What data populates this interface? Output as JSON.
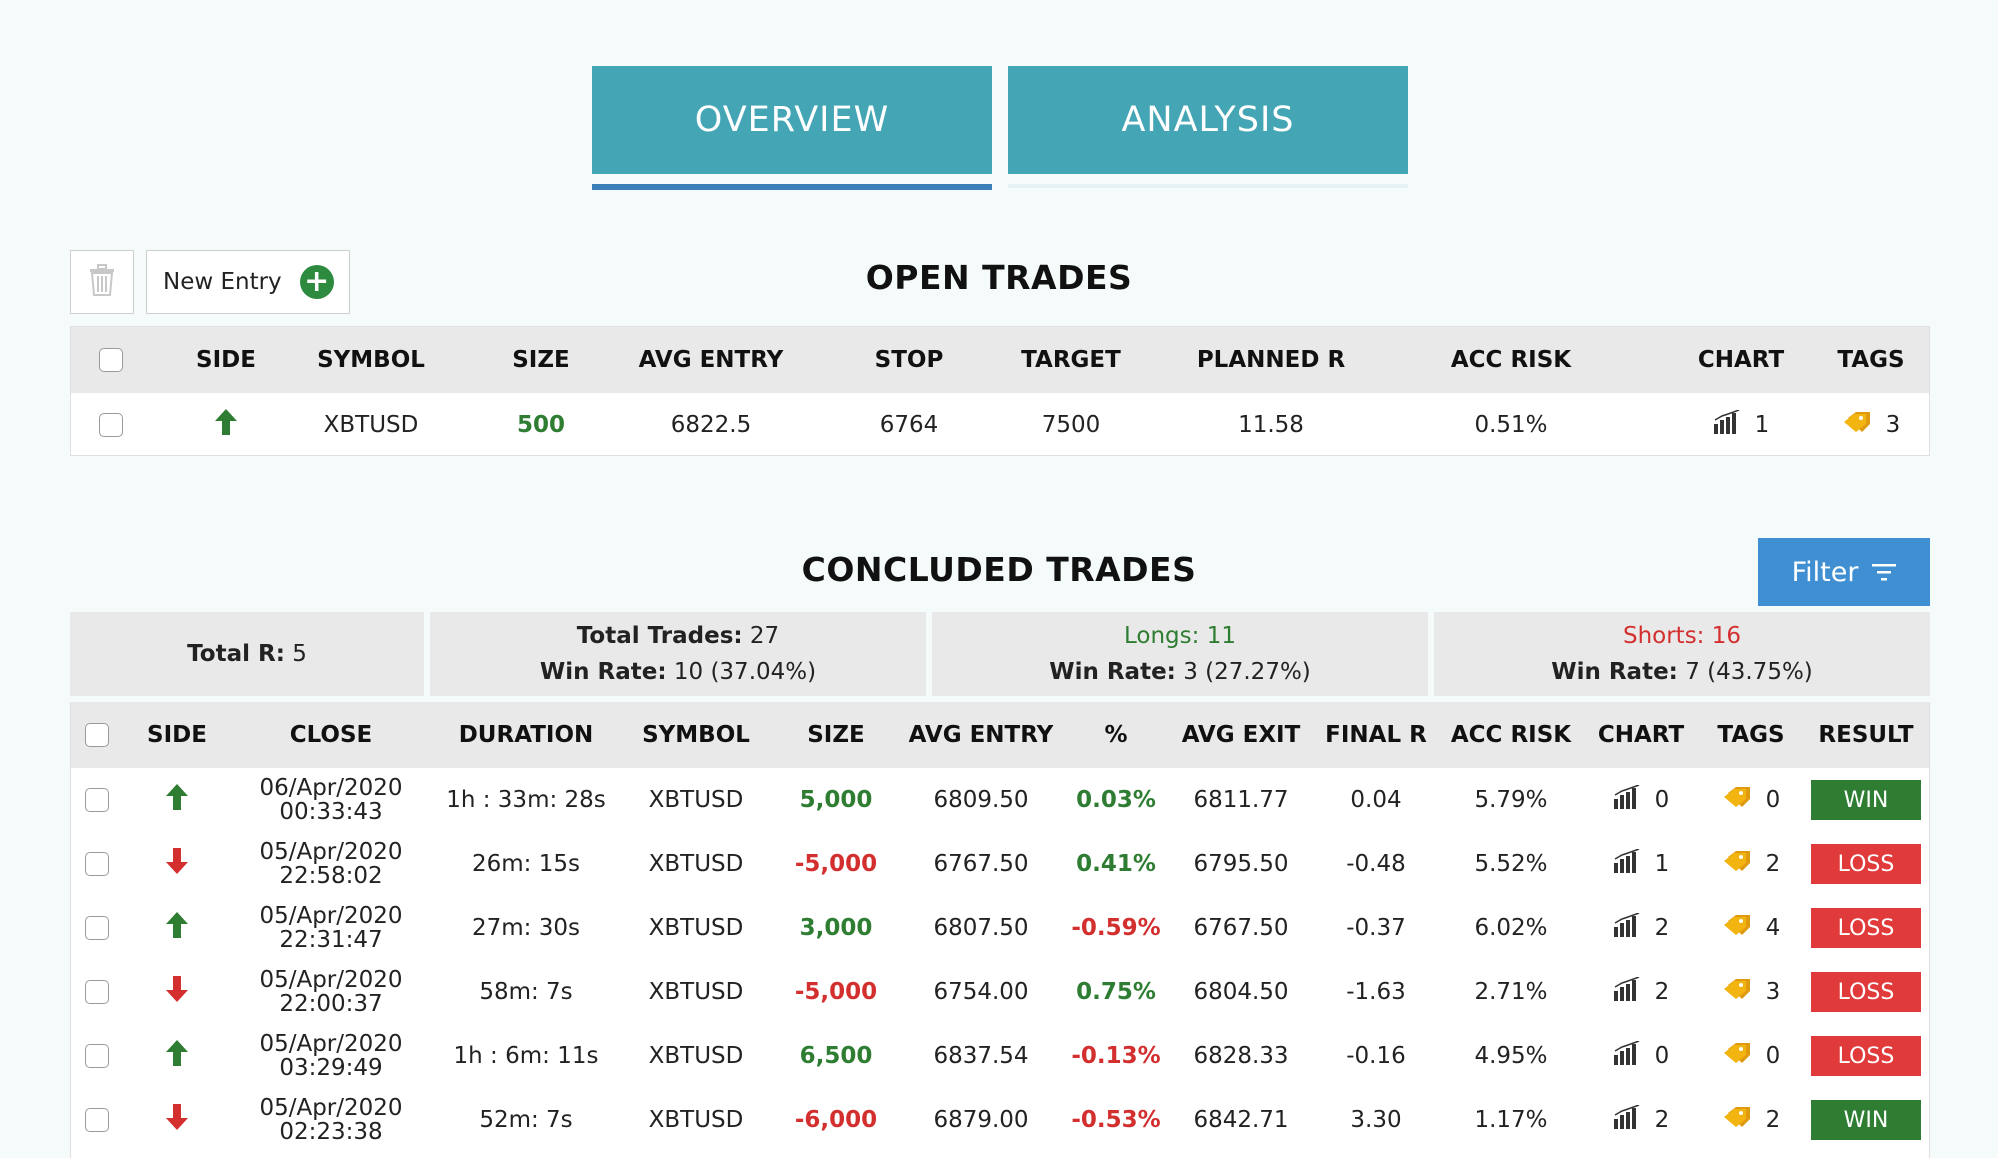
{
  "tabs": [
    {
      "label": "OVERVIEW",
      "active": true
    },
    {
      "label": "ANALYSIS",
      "active": false
    }
  ],
  "toolbar": {
    "new_entry_label": "New Entry"
  },
  "open_trades": {
    "title": "OPEN TRADES",
    "columns": [
      "SIDE",
      "SYMBOL",
      "SIZE",
      "AVG ENTRY",
      "STOP",
      "TARGET",
      "PLANNED R",
      "ACC RISK",
      "CHART",
      "TAGS"
    ],
    "rows": [
      {
        "side": "long",
        "symbol": "XBTUSD",
        "size": "500",
        "avg_entry": "6822.5",
        "stop": "6764",
        "target": "7500",
        "planned_r": "11.58",
        "acc_risk": "0.51%",
        "chart": "1",
        "tags": "3"
      }
    ]
  },
  "concluded_trades": {
    "title": "CONCLUDED TRADES",
    "filter_label": "Filter",
    "summary": {
      "total_r_label": "Total R:",
      "total_r_value": "5",
      "total_trades_label": "Total Trades:",
      "total_trades_value": "27",
      "win_rate_label": "Win Rate:",
      "total_win_rate": "10 (37.04%)",
      "longs_label": "Longs:",
      "longs_value": "11",
      "longs_win_rate": "3 (27.27%)",
      "shorts_label": "Shorts:",
      "shorts_value": "16",
      "shorts_win_rate": "7 (43.75%)"
    },
    "columns": [
      "SIDE",
      "CLOSE",
      "DURATION",
      "SYMBOL",
      "SIZE",
      "AVG ENTRY",
      "%",
      "AVG EXIT",
      "FINAL R",
      "ACC RISK",
      "CHART",
      "TAGS",
      "RESULT"
    ],
    "rows": [
      {
        "side": "long",
        "date": "06/Apr/2020",
        "time": "00:33:43",
        "duration": "1h : 33m: 28s",
        "symbol": "XBTUSD",
        "size": "5,000",
        "avg_entry": "6809.50",
        "pct": "0.03%",
        "avg_exit": "6811.77",
        "final_r": "0.04",
        "acc_risk": "5.79%",
        "chart": "0",
        "tags": "0",
        "result": "WIN"
      },
      {
        "side": "short",
        "date": "05/Apr/2020",
        "time": "22:58:02",
        "duration": "26m: 15s",
        "symbol": "XBTUSD",
        "size": "-5,000",
        "avg_entry": "6767.50",
        "pct": "0.41%",
        "avg_exit": "6795.50",
        "final_r": "-0.48",
        "acc_risk": "5.52%",
        "chart": "1",
        "tags": "2",
        "result": "LOSS"
      },
      {
        "side": "long",
        "date": "05/Apr/2020",
        "time": "22:31:47",
        "duration": "27m: 30s",
        "symbol": "XBTUSD",
        "size": "3,000",
        "avg_entry": "6807.50",
        "pct": "-0.59%",
        "avg_exit": "6767.50",
        "final_r": "-0.37",
        "acc_risk": "6.02%",
        "chart": "2",
        "tags": "4",
        "result": "LOSS"
      },
      {
        "side": "short",
        "date": "05/Apr/2020",
        "time": "22:00:37",
        "duration": "58m: 7s",
        "symbol": "XBTUSD",
        "size": "-5,000",
        "avg_entry": "6754.00",
        "pct": "0.75%",
        "avg_exit": "6804.50",
        "final_r": "-1.63",
        "acc_risk": "2.71%",
        "chart": "2",
        "tags": "3",
        "result": "LOSS"
      },
      {
        "side": "long",
        "date": "05/Apr/2020",
        "time": "03:29:49",
        "duration": "1h : 6m: 11s",
        "symbol": "XBTUSD",
        "size": "6,500",
        "avg_entry": "6837.54",
        "pct": "-0.13%",
        "avg_exit": "6828.33",
        "final_r": "-0.16",
        "acc_risk": "4.95%",
        "chart": "0",
        "tags": "0",
        "result": "LOSS"
      },
      {
        "side": "short",
        "date": "05/Apr/2020",
        "time": "02:23:38",
        "duration": "52m: 7s",
        "symbol": "XBTUSD",
        "size": "-6,000",
        "avg_entry": "6879.00",
        "pct": "-0.53%",
        "avg_exit": "6842.71",
        "final_r": "3.30",
        "acc_risk": "1.17%",
        "chart": "2",
        "tags": "2",
        "result": "WIN"
      }
    ]
  },
  "colors": {
    "tab": "#44a5b4",
    "tab_underline": "#3a7fb8",
    "filter": "#3f8fd2",
    "positive": "#2e7d32",
    "negative": "#d32f2f",
    "win": "#2e7d32",
    "loss": "#e03a3a",
    "tag_icon": "#f2b40f"
  },
  "icons": {
    "long": "arrow-up-icon",
    "short": "arrow-down-icon",
    "chart": "bar-chart-icon",
    "tags": "tag-icon",
    "trash": "trash-icon",
    "add": "plus-circle-icon",
    "filter": "filter-icon"
  }
}
